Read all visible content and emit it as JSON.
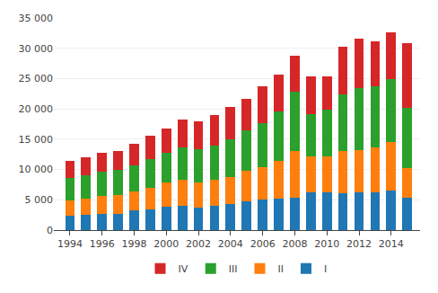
{
  "chart_data": {
    "type": "bar",
    "stacked": true,
    "x": [
      1994,
      1995,
      1996,
      1997,
      1998,
      1999,
      2000,
      2001,
      2002,
      2003,
      2004,
      2005,
      2006,
      2007,
      2008,
      2009,
      2010,
      2011,
      2012,
      2013,
      2014,
      2015
    ],
    "series": [
      {
        "name": "I",
        "values": [
          2300,
          2500,
          2600,
          2700,
          3200,
          3400,
          3800,
          4000,
          3700,
          4000,
          4300,
          4800,
          5000,
          5200,
          5400,
          6300,
          6200,
          6100,
          6200,
          6300,
          6600,
          5300
        ]
      },
      {
        "name": "II",
        "values": [
          2600,
          2700,
          3000,
          3100,
          3200,
          3600,
          4000,
          4300,
          4200,
          4300,
          4400,
          5000,
          5400,
          6200,
          7700,
          5800,
          5900,
          7000,
          7000,
          7400,
          7900,
          5000
        ]
      },
      {
        "name": "III",
        "values": [
          3700,
          3800,
          4000,
          4100,
          4300,
          4700,
          5000,
          5400,
          5500,
          5700,
          6300,
          6600,
          7300,
          8200,
          9700,
          7100,
          7800,
          9300,
          10300,
          10100,
          10400,
          9900
        ]
      },
      {
        "name": "IV",
        "values": [
          2800,
          3000,
          3100,
          3200,
          3500,
          3900,
          4000,
          4500,
          4600,
          5000,
          5300,
          5200,
          6000,
          6100,
          6000,
          6200,
          5400,
          7800,
          8100,
          7300,
          7800,
          10700
        ]
      }
    ],
    "xlim": [
      1993.0,
      2015.8
    ],
    "xticks": [
      1994,
      1996,
      1998,
      2000,
      2002,
      2004,
      2006,
      2008,
      2010,
      2012,
      2014
    ],
    "ylim": [
      0,
      35000
    ],
    "yticks": [
      0,
      {
        "value": 5000,
        "label": "5 000"
      },
      {
        "value": 10000,
        "label": "10 000"
      },
      {
        "value": 15000,
        "label": "15 000"
      },
      {
        "value": 20000,
        "label": "20 000"
      },
      {
        "value": 25000,
        "label": "25 000"
      },
      {
        "value": 30000,
        "label": "30 000"
      },
      {
        "value": 35000,
        "label": "35 000"
      }
    ],
    "grid": true,
    "legend": "bottom"
  }
}
